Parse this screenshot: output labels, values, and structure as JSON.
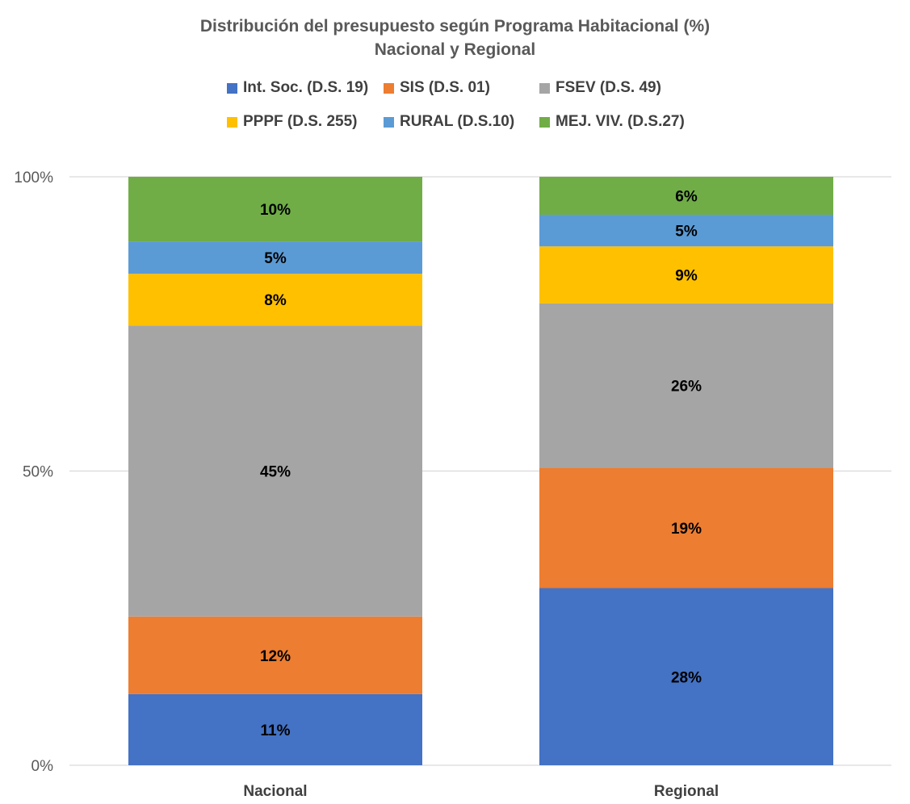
{
  "chart_data": {
    "type": "bar",
    "stacked": "percent",
    "title": "Distribución del presupuesto según Programa Habitacional (%)",
    "subtitle": "Nacional y Regional",
    "categories": [
      "Nacional",
      "Regional"
    ],
    "ylim": [
      0,
      100
    ],
    "yticks": [
      0,
      50,
      100
    ],
    "ytick_labels": [
      "0%",
      "50%",
      "100%"
    ],
    "grid": true,
    "legend_position": "top",
    "series": [
      {
        "name": "Int. Soc. (D.S. 19)",
        "color": "#4472C4",
        "values": [
          11,
          28
        ],
        "labels": [
          "11%",
          "28%"
        ]
      },
      {
        "name": "SIS (D.S. 01)",
        "color": "#ED7D31",
        "values": [
          12,
          19
        ],
        "labels": [
          "12%",
          "19%"
        ]
      },
      {
        "name": "FSEV (D.S. 49)",
        "color": "#A5A5A5",
        "values": [
          45,
          26
        ],
        "labels": [
          "45%",
          "26%"
        ]
      },
      {
        "name": "PPPF (D.S. 255)",
        "color": "#FFC000",
        "values": [
          8,
          9
        ],
        "labels": [
          "8%",
          "9%"
        ]
      },
      {
        "name": "RURAL (D.S.10)",
        "color": "#5B9BD5",
        "values": [
          5,
          5
        ],
        "labels": [
          "5%",
          "5%"
        ]
      },
      {
        "name": "MEJ. VIV. (D.S.27)",
        "color": "#70AD47",
        "values": [
          10,
          6
        ],
        "labels": [
          "10%",
          "6%"
        ]
      }
    ]
  }
}
